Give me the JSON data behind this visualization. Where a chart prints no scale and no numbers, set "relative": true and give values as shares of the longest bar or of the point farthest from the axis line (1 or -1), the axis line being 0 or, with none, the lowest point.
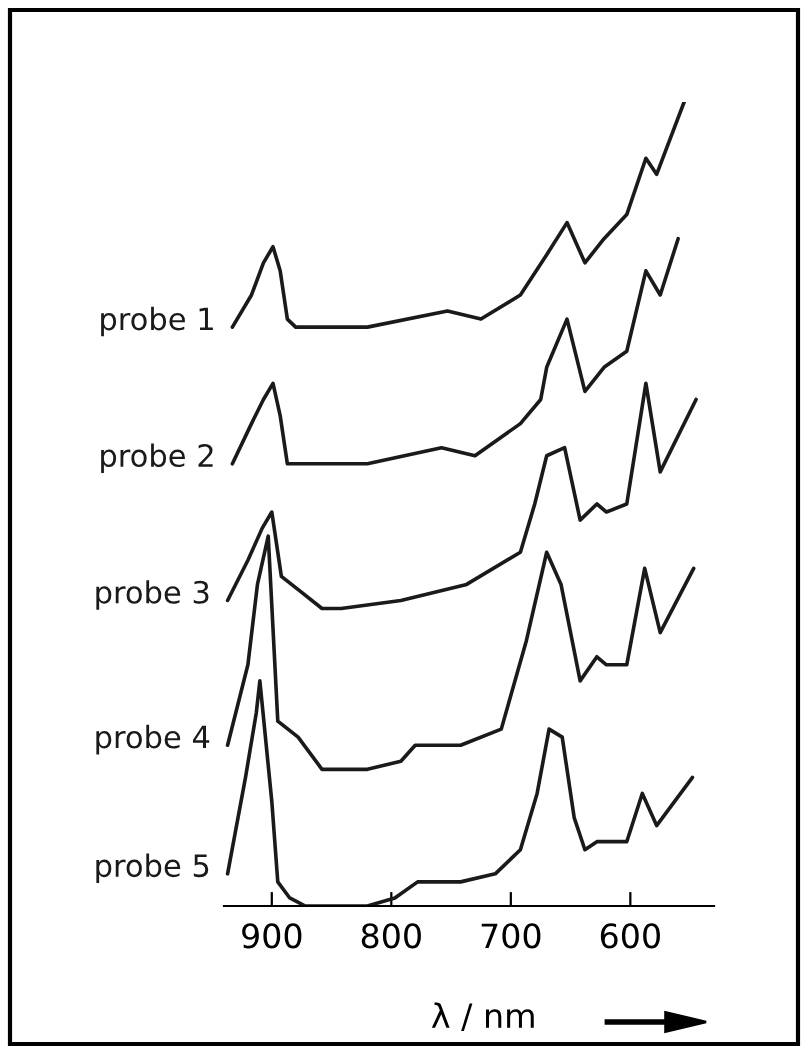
{
  "chart_data": {
    "type": "line",
    "relative": true,
    "xlabel": "λ / nm",
    "xlim": [
      940,
      530
    ],
    "xticks": [
      900,
      800,
      700,
      600
    ],
    "grid": false,
    "legend": false,
    "marker": "none",
    "line_style": "solid",
    "tick_labels": "x",
    "series": [
      {
        "name": "probe 1",
        "color": "#1a1a1a",
        "x": [
          933,
          917,
          907,
          899,
          893,
          887,
          880,
          820,
          753,
          725,
          692,
          670,
          653,
          638,
          622,
          603,
          587,
          578,
          555
        ],
        "values": [
          0.72,
          0.76,
          0.8,
          0.82,
          0.79,
          0.73,
          0.72,
          0.72,
          0.74,
          0.73,
          0.76,
          0.81,
          0.85,
          0.8,
          0.83,
          0.86,
          0.93,
          0.91,
          1.0
        ]
      },
      {
        "name": "probe 2",
        "color": "#1a1a1a",
        "x": [
          933,
          917,
          907,
          899,
          893,
          887,
          880,
          820,
          758,
          730,
          692,
          675,
          670,
          653,
          638,
          622,
          603,
          587,
          575,
          560
        ],
        "values": [
          0.55,
          0.6,
          0.63,
          0.65,
          0.61,
          0.55,
          0.55,
          0.55,
          0.57,
          0.56,
          0.6,
          0.63,
          0.67,
          0.73,
          0.64,
          0.67,
          0.69,
          0.79,
          0.76,
          0.83
        ]
      },
      {
        "name": "probe 3",
        "color": "#1a1a1a",
        "x": [
          937,
          920,
          908,
          900,
          892,
          875,
          858,
          842,
          792,
          737,
          692,
          680,
          670,
          655,
          642,
          628,
          620,
          603,
          587,
          575,
          545
        ],
        "values": [
          0.38,
          0.43,
          0.47,
          0.49,
          0.41,
          0.39,
          0.37,
          0.37,
          0.38,
          0.4,
          0.44,
          0.5,
          0.56,
          0.57,
          0.48,
          0.5,
          0.49,
          0.5,
          0.65,
          0.54,
          0.63
        ]
      },
      {
        "name": "probe 4",
        "color": "#1a1a1a",
        "x": [
          937,
          920,
          912,
          903,
          895,
          878,
          858,
          820,
          792,
          780,
          742,
          708,
          687,
          670,
          658,
          642,
          628,
          620,
          603,
          588,
          575,
          547
        ],
        "values": [
          0.2,
          0.3,
          0.4,
          0.46,
          0.23,
          0.21,
          0.17,
          0.17,
          0.18,
          0.2,
          0.2,
          0.22,
          0.33,
          0.44,
          0.4,
          0.28,
          0.31,
          0.3,
          0.3,
          0.42,
          0.34,
          0.42
        ]
      },
      {
        "name": "probe 5",
        "color": "#1a1a1a",
        "x": [
          937,
          922,
          913,
          910,
          900,
          895,
          885,
          872,
          820,
          797,
          778,
          742,
          713,
          692,
          678,
          668,
          657,
          647,
          638,
          628,
          620,
          603,
          590,
          578,
          548
        ],
        "values": [
          0.04,
          0.16,
          0.24,
          0.28,
          0.13,
          0.03,
          0.01,
          0,
          0,
          0.01,
          0.03,
          0.03,
          0.04,
          0.07,
          0.14,
          0.22,
          0.21,
          0.11,
          0.07,
          0.08,
          0.08,
          0.08,
          0.14,
          0.1,
          0.16
        ]
      }
    ]
  }
}
